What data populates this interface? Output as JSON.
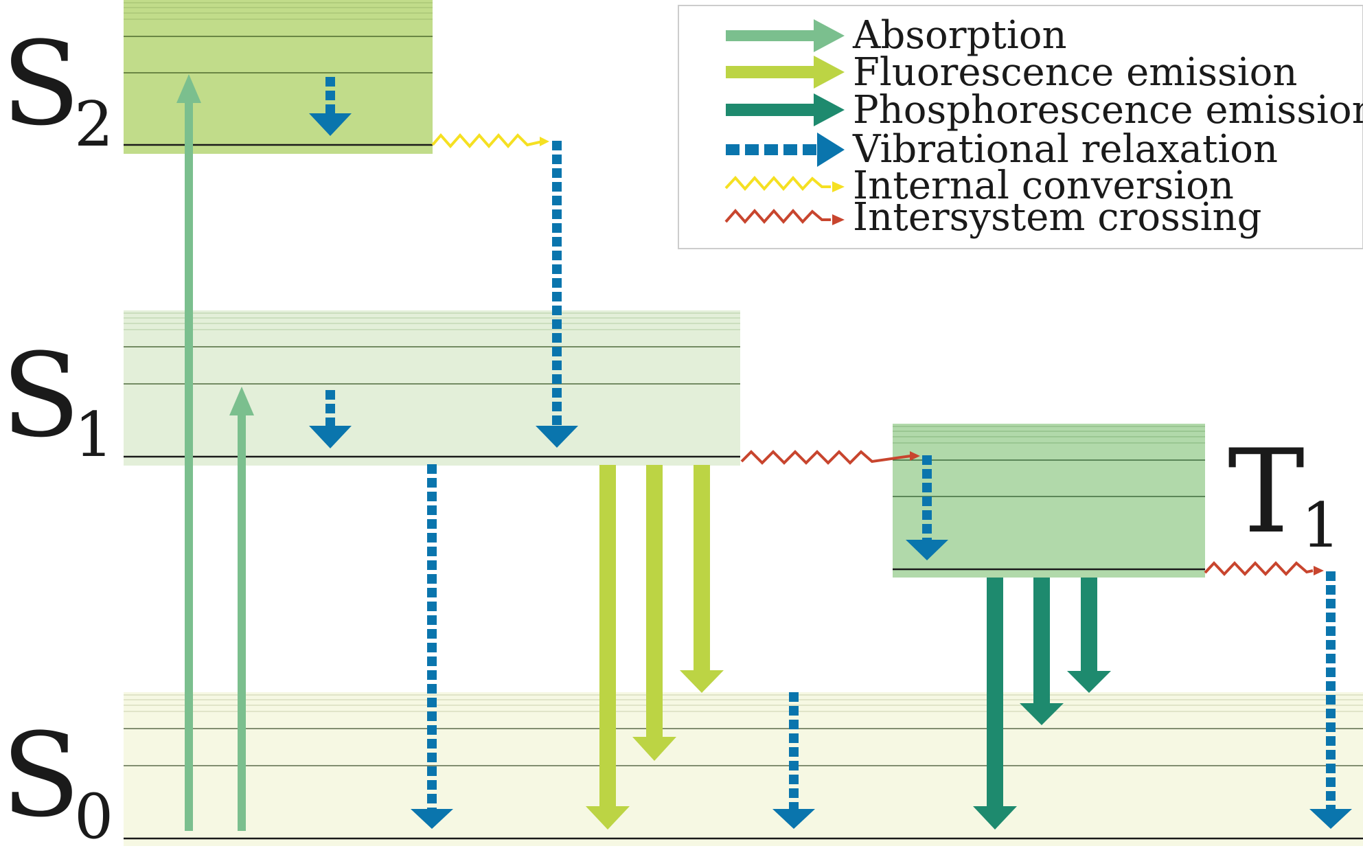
{
  "levels": {
    "s2": {
      "letter": "S",
      "sub": "2"
    },
    "s1": {
      "letter": "S",
      "sub": "1"
    },
    "s0": {
      "letter": "S",
      "sub": "0"
    },
    "t1": {
      "letter": "T",
      "sub": "1"
    }
  },
  "legend": {
    "absorption": "Absorption",
    "fluorescence": "Fluorescence emission",
    "phosphorescence": "Phosphorescence emission",
    "vibrational": "Vibrational relaxation",
    "internal": "Internal conversion",
    "intersystem": "Intersystem crossing"
  },
  "colors": {
    "absorption": "#7bbf8e",
    "fluorescence": "#bcd444",
    "phosphorescence": "#1e8a6e",
    "vibrational": "#0a75ad",
    "internal": "#f5e022",
    "intersystem": "#c8452e",
    "s2_band": "#c1dc8a",
    "s1_band": "#e3efd9",
    "s0_band": "#f6f8e3",
    "t1_band": "#b1d9aa"
  }
}
